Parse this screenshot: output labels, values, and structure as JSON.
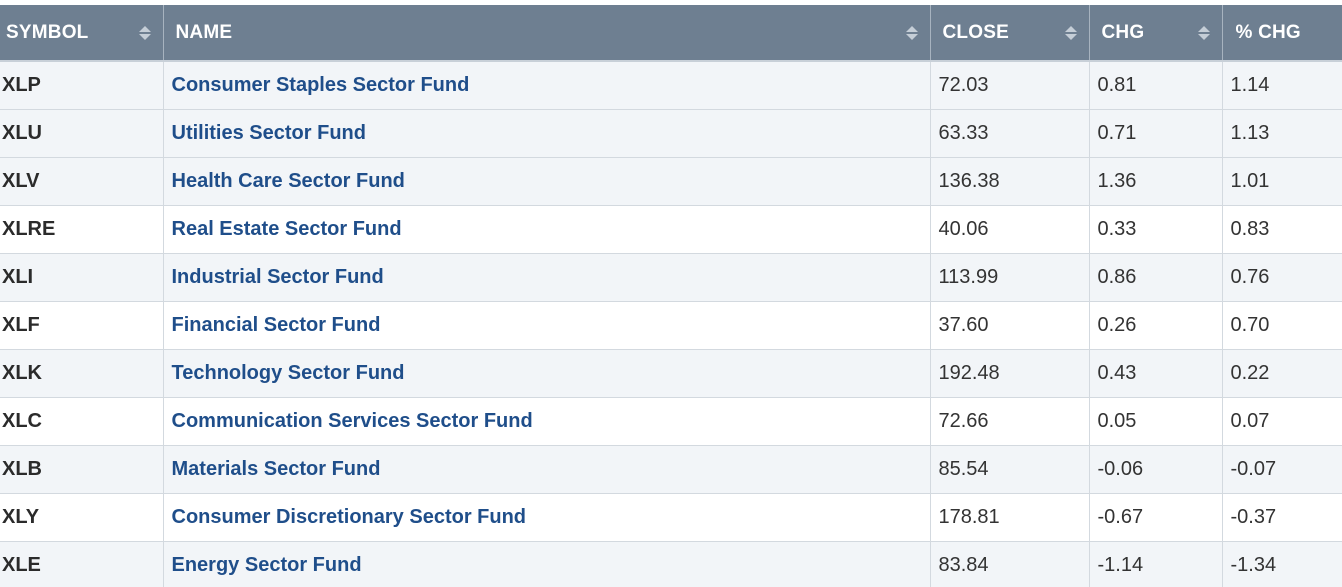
{
  "table": {
    "columns": [
      {
        "key": "symbol",
        "label": "SYMBOL",
        "sortable": true
      },
      {
        "key": "name",
        "label": "NAME",
        "sortable": true
      },
      {
        "key": "close",
        "label": "CLOSE",
        "sortable": true
      },
      {
        "key": "chg",
        "label": "CHG",
        "sortable": true
      },
      {
        "key": "pct_chg",
        "label": "% CHG",
        "sortable": false
      }
    ],
    "rows": [
      {
        "symbol": "XLP",
        "name": "Consumer Staples Sector Fund",
        "close": "72.03",
        "chg": "0.81",
        "pct_chg": "1.14"
      },
      {
        "symbol": "XLU",
        "name": "Utilities Sector Fund",
        "close": "63.33",
        "chg": "0.71",
        "pct_chg": "1.13"
      },
      {
        "symbol": "XLV",
        "name": "Health Care Sector Fund",
        "close": "136.38",
        "chg": "1.36",
        "pct_chg": "1.01"
      },
      {
        "symbol": "XLRE",
        "name": "Real Estate Sector Fund",
        "close": "40.06",
        "chg": "0.33",
        "pct_chg": "0.83"
      },
      {
        "symbol": "XLI",
        "name": "Industrial Sector Fund",
        "close": "113.99",
        "chg": "0.86",
        "pct_chg": "0.76"
      },
      {
        "symbol": "XLF",
        "name": "Financial Sector Fund",
        "close": "37.60",
        "chg": "0.26",
        "pct_chg": "0.70"
      },
      {
        "symbol": "XLK",
        "name": "Technology Sector Fund",
        "close": "192.48",
        "chg": "0.43",
        "pct_chg": "0.22"
      },
      {
        "symbol": "XLC",
        "name": "Communication Services Sector Fund",
        "close": "72.66",
        "chg": "0.05",
        "pct_chg": "0.07"
      },
      {
        "symbol": "XLB",
        "name": "Materials Sector Fund",
        "close": "85.54",
        "chg": "-0.06",
        "pct_chg": "-0.07"
      },
      {
        "symbol": "XLY",
        "name": "Consumer Discretionary Sector Fund",
        "close": "178.81",
        "chg": "-0.67",
        "pct_chg": "-0.37"
      },
      {
        "symbol": "XLE",
        "name": "Energy Sector Fund",
        "close": "83.84",
        "chg": "-1.14",
        "pct_chg": "-1.34"
      }
    ]
  },
  "colors": {
    "header_bg": "#6e7f91",
    "header_text": "#ffffff",
    "row_shaded": "#f2f5f8",
    "link": "#1f4e8a",
    "border": "#d3d9df"
  },
  "icons": {
    "sort": "sort-arrows-icon"
  }
}
